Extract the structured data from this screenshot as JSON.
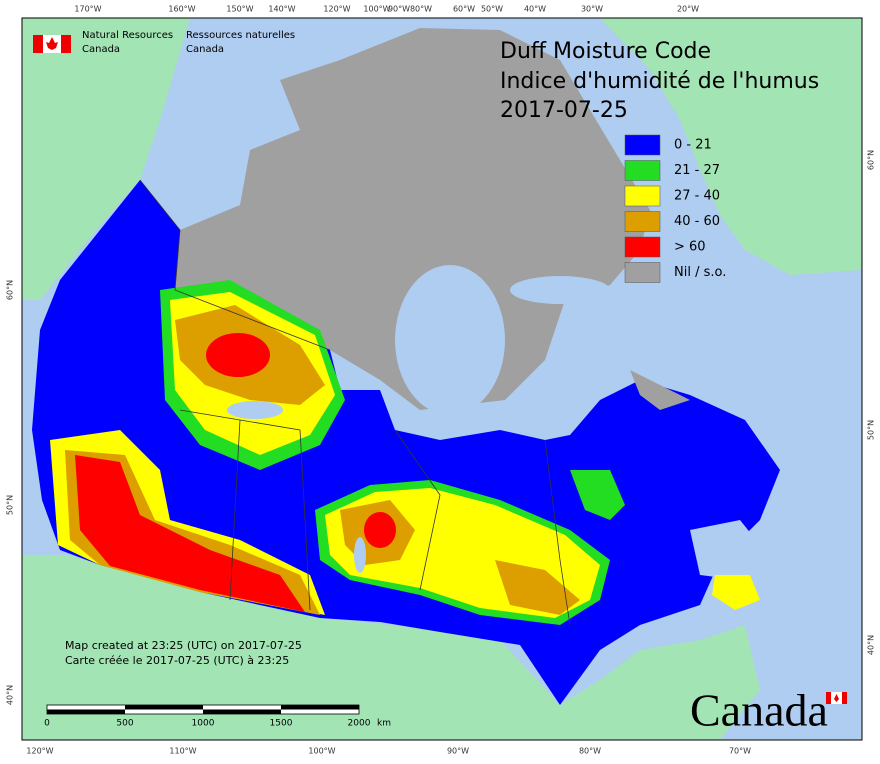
{
  "header": {
    "agency_en": [
      "Natural Resources",
      "Canada"
    ],
    "agency_fr": [
      "Ressources naturelles",
      "Canada"
    ]
  },
  "title": [
    "Duff Moisture Code",
    "Indice d'humidité de l'humus",
    "2017-07-25"
  ],
  "legend": [
    {
      "label": "0 - 21",
      "color": "#0000ff"
    },
    {
      "label": "21 - 27",
      "color": "#22dd22"
    },
    {
      "label": "27 - 40",
      "color": "#ffff00"
    },
    {
      "label": "40 - 60",
      "color": "#dd9e00"
    },
    {
      "label": "> 60",
      "color": "#ff0000"
    },
    {
      "label": "Nil / s.o.",
      "color": "#a0a0a0"
    }
  ],
  "notes": [
    "Map created at 23:25 (UTC) on 2017-07-25",
    "Carte créée le 2017-07-25 (UTC) à 23:25"
  ],
  "scale_bar": {
    "labels": [
      "0",
      "500",
      "1000",
      "1500",
      "2000"
    ],
    "unit": "km"
  },
  "graticule": {
    "top": [
      "170°W",
      "160°W",
      "150°W",
      "140°W",
      "120°W",
      "100°W",
      "90°W",
      "80°W",
      "60°W",
      "50°W",
      "40°W",
      "30°W",
      "20°W"
    ],
    "bottom": [
      "120°W",
      "110°W",
      "100°W",
      "90°W",
      "80°W",
      "70°W"
    ],
    "left": [
      "60°N",
      "50°N",
      "40°N"
    ],
    "right": [
      "60°N",
      "50°N",
      "40°N"
    ]
  },
  "wordmark": "Canada"
}
